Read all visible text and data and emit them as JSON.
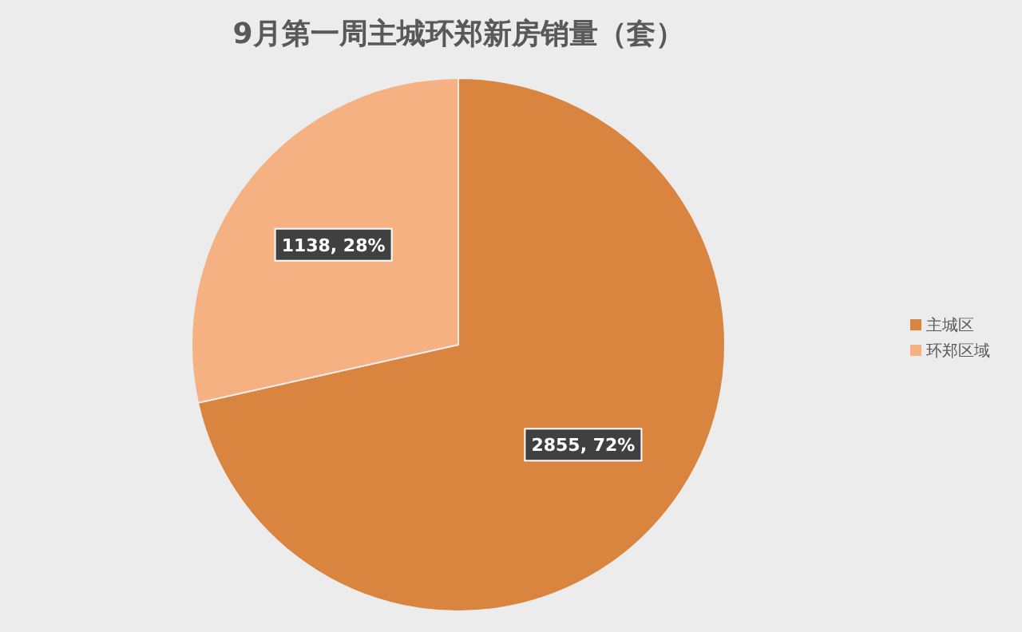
{
  "chart_data": {
    "type": "pie",
    "title": "9月第一周主城环郑新房销量（套）",
    "categories": [
      "主城区",
      "环郑区域"
    ],
    "values": [
      2855,
      1138
    ],
    "colors": [
      "#d9843f",
      "#f6b183"
    ],
    "value_labels": [
      "2855, 72%",
      "1138, 28%"
    ],
    "legend": "right"
  }
}
